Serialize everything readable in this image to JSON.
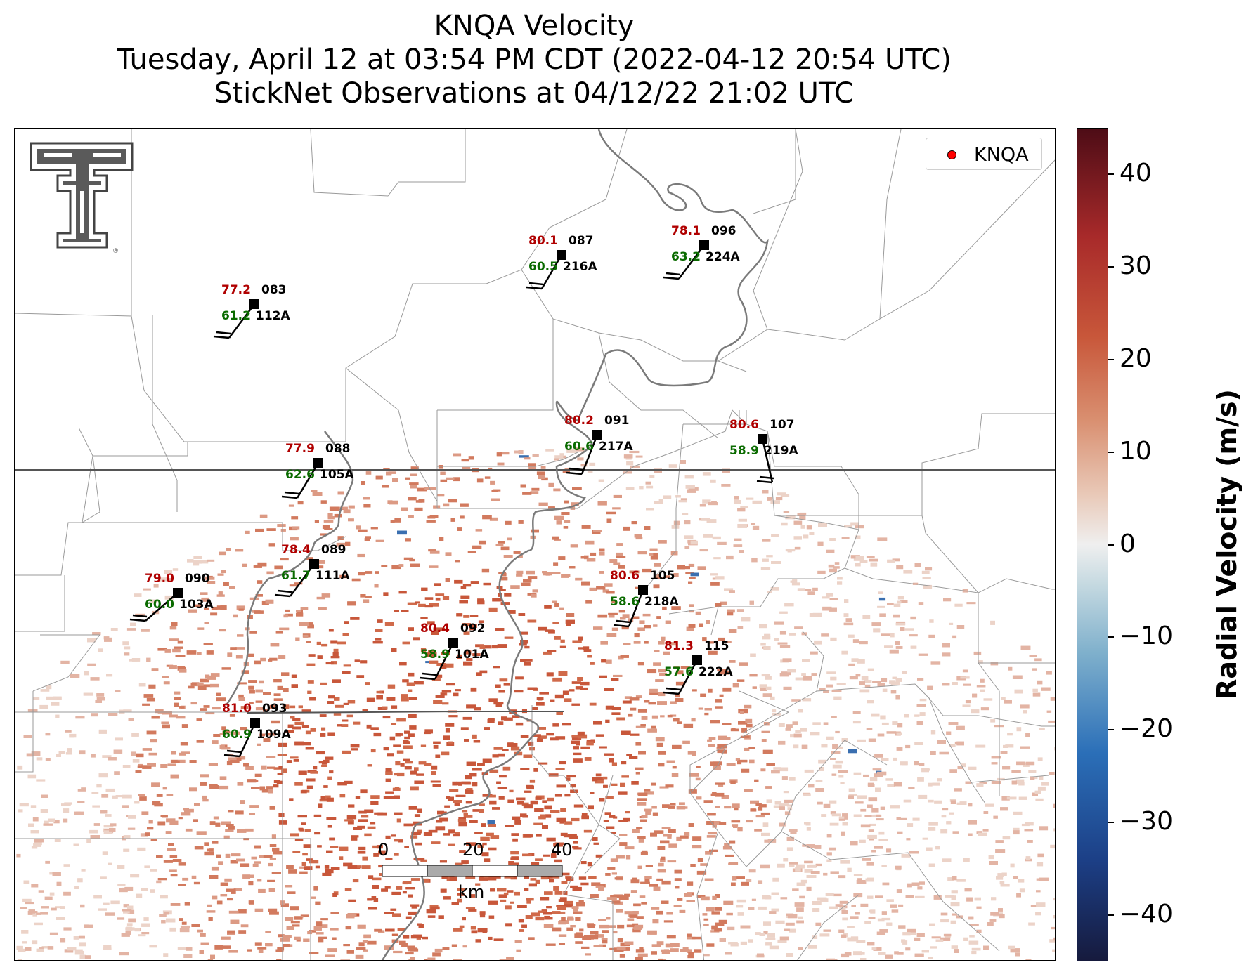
{
  "title": {
    "line1": "KNQA Velocity",
    "line2": "Tuesday, April 12 at 03:54 PM CDT (2022-04-12 20:54 UTC)",
    "line3": "StickNet Observations at 04/12/22 21:02 UTC"
  },
  "legend": {
    "label": "KNQA",
    "marker_color": "#ff0000"
  },
  "logo": {
    "name": "texas-tech-double-t-logo",
    "mark": "®"
  },
  "stations": [
    {
      "id": "083",
      "tag": "112A",
      "temp": "77.2",
      "dew": "61.2"
    },
    {
      "id": "087",
      "tag": "216A",
      "temp": "80.1",
      "dew": "60.5"
    },
    {
      "id": "096",
      "tag": "224A",
      "temp": "78.1",
      "dew": "63.2"
    },
    {
      "id": "088",
      "tag": "105A",
      "temp": "77.9",
      "dew": "62.6"
    },
    {
      "id": "091",
      "tag": "217A",
      "temp": "80.2",
      "dew": "60.6"
    },
    {
      "id": "107",
      "tag": "219A",
      "temp": "80.6",
      "dew": "58.9"
    },
    {
      "id": "089",
      "tag": "111A",
      "temp": "78.4",
      "dew": "61.7"
    },
    {
      "id": "090",
      "tag": "103A",
      "temp": "79.0",
      "dew": "60.0"
    },
    {
      "id": "105",
      "tag": "218A",
      "temp": "80.6",
      "dew": "58.6"
    },
    {
      "id": "092",
      "tag": "101A",
      "temp": "80.4",
      "dew": "58.9"
    },
    {
      "id": "115",
      "tag": "222A",
      "temp": "81.3",
      "dew": "57.6"
    },
    {
      "id": "093",
      "tag": "109A",
      "temp": "81.0",
      "dew": "60.9"
    }
  ],
  "scale_bar": {
    "labels": [
      "0",
      "20",
      "40"
    ],
    "unit": "km"
  },
  "colorbar": {
    "title": "Radial Velocity (m/s)",
    "ticks": [
      "40",
      "30",
      "20",
      "10",
      "0",
      "−10",
      "−20",
      "−30",
      "−40"
    ],
    "range": [
      -45,
      45
    ]
  },
  "colors": {
    "temp": "#b00000",
    "dew": "#0a6b00",
    "radar_pos": "#c8573a"
  }
}
